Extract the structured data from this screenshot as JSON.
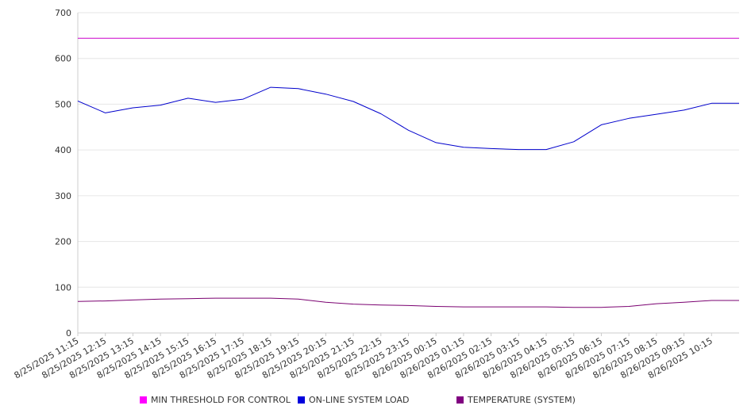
{
  "chart_data": {
    "type": "line",
    "title": "",
    "xlabel": "",
    "ylabel": "",
    "ylim": [
      0,
      700
    ],
    "yticks": [
      0,
      100,
      200,
      300,
      400,
      500,
      600,
      700
    ],
    "grid": true,
    "legend_position": "bottom",
    "categories": [
      "8/25/2025 11:15",
      "8/25/2025 12:15",
      "8/25/2025 13:15",
      "8/25/2025 14:15",
      "8/25/2025 15:15",
      "8/25/2025 16:15",
      "8/25/2025 17:15",
      "8/25/2025 18:15",
      "8/25/2025 19:15",
      "8/25/2025 20:15",
      "8/25/2025 21:15",
      "8/25/2025 22:15",
      "8/25/2025 23:15",
      "8/26/2025 00:15",
      "8/26/2025 01:15",
      "8/26/2025 02:15",
      "8/26/2025 03:15",
      "8/26/2025 04:15",
      "8/26/2025 05:15",
      "8/26/2025 06:15",
      "8/26/2025 07:15",
      "8/26/2025 08:15",
      "8/26/2025 09:15",
      "8/26/2025 10:15"
    ],
    "series": [
      {
        "name": "MIN THRESHOLD FOR CONTROL",
        "color": "#cc00cc",
        "values": [
          644,
          644,
          644,
          644,
          644,
          644,
          644,
          644,
          644,
          644,
          644,
          644,
          644,
          644,
          644,
          644,
          644,
          644,
          644,
          644,
          644,
          644,
          644,
          644
        ]
      },
      {
        "name": "ON-LINE SYSTEM LOAD",
        "color": "#0000cc",
        "values": [
          507,
          481,
          492,
          498,
          513,
          504,
          511,
          537,
          534,
          522,
          506,
          479,
          443,
          416,
          406,
          403,
          401,
          401,
          418,
          455,
          469,
          478,
          487,
          502
        ]
      },
      {
        "name": "TEMPERATURE (SYSTEM)",
        "color": "#7a0070",
        "values": [
          69,
          70,
          72,
          74,
          75,
          76,
          76,
          76,
          74,
          67,
          63,
          61,
          60,
          58,
          57,
          57,
          57,
          57,
          56,
          56,
          58,
          64,
          67,
          71
        ]
      }
    ]
  }
}
